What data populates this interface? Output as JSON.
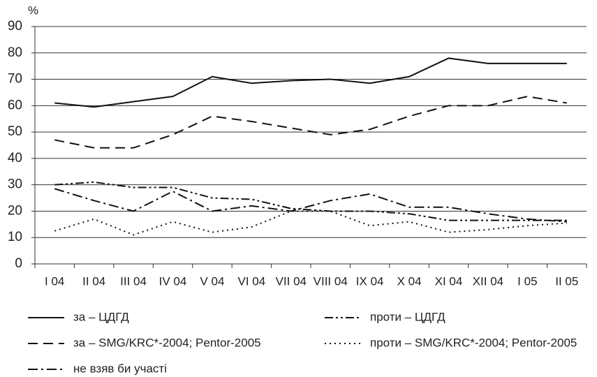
{
  "chart_data": {
    "type": "line",
    "ylabel": "%",
    "categories": [
      "I 04",
      "II 04",
      "III 04",
      "IV 04",
      "V 04",
      "VI 04",
      "VII 04",
      "VIII 04",
      "IX 04",
      "X 04",
      "XI 04",
      "XII 04",
      "I 05",
      "II 05"
    ],
    "ylim": [
      0,
      90
    ],
    "yticks": [
      0,
      10,
      20,
      30,
      40,
      50,
      60,
      70,
      80,
      90
    ],
    "grid": true,
    "series": [
      {
        "name": "за – ЦДГД",
        "color": "#111111",
        "style": "solid",
        "values": [
          61,
          59.5,
          61.5,
          63.5,
          71,
          68.5,
          69.5,
          70,
          68.5,
          71,
          78,
          76,
          76,
          76
        ]
      },
      {
        "name": "проти – ЦДГД",
        "color": "#111111",
        "style": "dash-dot-dot",
        "values": [
          30,
          31,
          29,
          29,
          25,
          24.5,
          21,
          20,
          20,
          19,
          16.5,
          16.5,
          16.5,
          16.5
        ]
      },
      {
        "name": "за – SMG/KRC*-2004; Pentor-2005",
        "color": "#111111",
        "style": "dashed",
        "values": [
          47,
          44,
          44,
          49,
          56,
          54,
          51.5,
          49,
          51,
          56,
          60,
          60,
          63.5,
          61
        ]
      },
      {
        "name": "проти – SMG/KRC*-2004; Pentor-2005",
        "color": "#111111",
        "style": "dotted",
        "values": [
          12.5,
          17,
          11,
          16,
          12,
          14,
          20,
          20,
          14.5,
          16,
          12,
          13,
          14.5,
          15.5
        ]
      },
      {
        "name": "не взяв би участі",
        "color": "#111111",
        "style": "dash-dot",
        "values": [
          28.5,
          24,
          20,
          27.5,
          20,
          22,
          20,
          24,
          26.5,
          21.5,
          21.5,
          19,
          17,
          16
        ]
      }
    ]
  }
}
